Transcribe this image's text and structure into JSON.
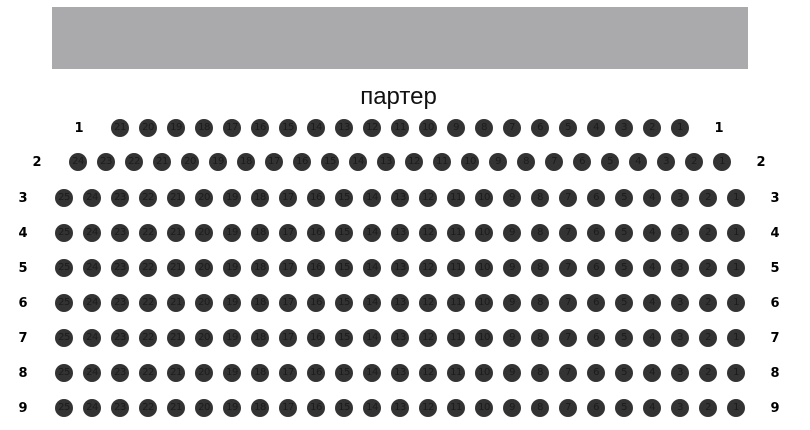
{
  "screen_label": "",
  "hall_title": "партер",
  "colors": {
    "screen": "#aaa9ab",
    "seat": "#333333",
    "seat_text": "#1c1c1c"
  },
  "rows": [
    {
      "label": "1",
      "seats": [
        21,
        20,
        19,
        18,
        17,
        16,
        15,
        14,
        13,
        12,
        11,
        10,
        9,
        8,
        7,
        6,
        5,
        4,
        3,
        2,
        1
      ]
    },
    {
      "label": "2",
      "seats": [
        24,
        23,
        22,
        21,
        20,
        19,
        18,
        17,
        16,
        15,
        14,
        13,
        12,
        11,
        10,
        9,
        8,
        7,
        6,
        5,
        4,
        3,
        2,
        1
      ]
    },
    {
      "label": "3",
      "seats": [
        25,
        24,
        23,
        22,
        21,
        20,
        19,
        18,
        17,
        16,
        15,
        14,
        13,
        12,
        11,
        10,
        9,
        8,
        7,
        6,
        5,
        4,
        3,
        2,
        1
      ]
    },
    {
      "label": "4",
      "seats": [
        25,
        24,
        23,
        22,
        21,
        20,
        19,
        18,
        17,
        16,
        15,
        14,
        13,
        12,
        11,
        10,
        9,
        8,
        7,
        6,
        5,
        4,
        3,
        2,
        1
      ]
    },
    {
      "label": "5",
      "seats": [
        25,
        24,
        23,
        22,
        21,
        20,
        19,
        18,
        17,
        16,
        15,
        14,
        13,
        12,
        11,
        10,
        9,
        8,
        7,
        6,
        5,
        4,
        3,
        2,
        1
      ]
    },
    {
      "label": "6",
      "seats": [
        25,
        24,
        23,
        22,
        21,
        20,
        19,
        18,
        17,
        16,
        15,
        14,
        13,
        12,
        11,
        10,
        9,
        8,
        7,
        6,
        5,
        4,
        3,
        2,
        1
      ]
    },
    {
      "label": "7",
      "seats": [
        25,
        24,
        23,
        22,
        21,
        20,
        19,
        18,
        17,
        16,
        15,
        14,
        13,
        12,
        11,
        10,
        9,
        8,
        7,
        6,
        5,
        4,
        3,
        2,
        1
      ]
    },
    {
      "label": "8",
      "seats": [
        25,
        24,
        23,
        22,
        21,
        20,
        19,
        18,
        17,
        16,
        15,
        14,
        13,
        12,
        11,
        10,
        9,
        8,
        7,
        6,
        5,
        4,
        3,
        2,
        1
      ]
    },
    {
      "label": "9",
      "seats": [
        25,
        24,
        23,
        22,
        21,
        20,
        19,
        18,
        17,
        16,
        15,
        14,
        13,
        12,
        11,
        10,
        9,
        8,
        7,
        6,
        5,
        4,
        3,
        2,
        1
      ]
    }
  ]
}
